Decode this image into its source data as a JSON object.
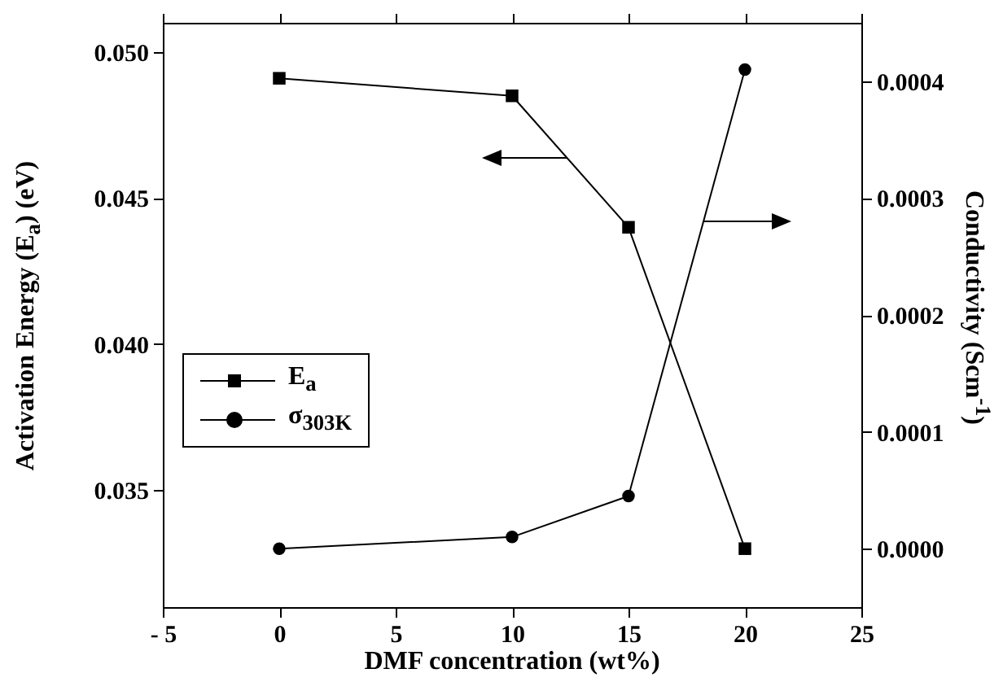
{
  "chart_data": {
    "type": "line",
    "xlabel": "DMF concentration (wt%)",
    "ylabel": "Activation  Energy  (E$_{a}$)  (eV)",
    "y2label": "Conductivity  (Scm$^{-1}$)",
    "x": [
      0,
      10,
      15,
      20
    ],
    "series": [
      {
        "name": "E$_{a}$",
        "color": "#000000",
        "marker": "square",
        "axis": "y",
        "values": [
          0.0491,
          0.0485,
          0.044,
          0.033
        ]
      },
      {
        "name": "σ$_{303K}$",
        "color": "#000000",
        "marker": "circle",
        "axis": "y2",
        "values": [
          0,
          1e-05,
          4.5e-05,
          0.00041
        ]
      }
    ],
    "xlim": [
      -5,
      25
    ],
    "xticks": [
      {
        "value": -5,
        "label": "- 5"
      },
      0,
      5,
      10,
      15,
      20,
      25
    ],
    "ylim": [
      0.031,
      0.051
    ],
    "yticks": [
      {
        "value": 0.035,
        "label": "0.035"
      },
      {
        "value": 0.04,
        "label": "0.040"
      },
      {
        "value": 0.045,
        "label": "0.045"
      },
      {
        "value": 0.05,
        "label": "0.050"
      }
    ],
    "y2lim": [
      -5e-05,
      0.00045
    ],
    "y2ticks": [
      {
        "value": 0,
        "label": "0.0000"
      },
      {
        "value": 0.0001,
        "label": "0.0001"
      },
      {
        "value": 0.0002,
        "label": "0.0002"
      },
      {
        "value": 0.0003,
        "label": "0.0003"
      },
      {
        "value": 0.0004,
        "label": "0.0004"
      }
    ],
    "legend": "bottom left",
    "grid": false
  }
}
